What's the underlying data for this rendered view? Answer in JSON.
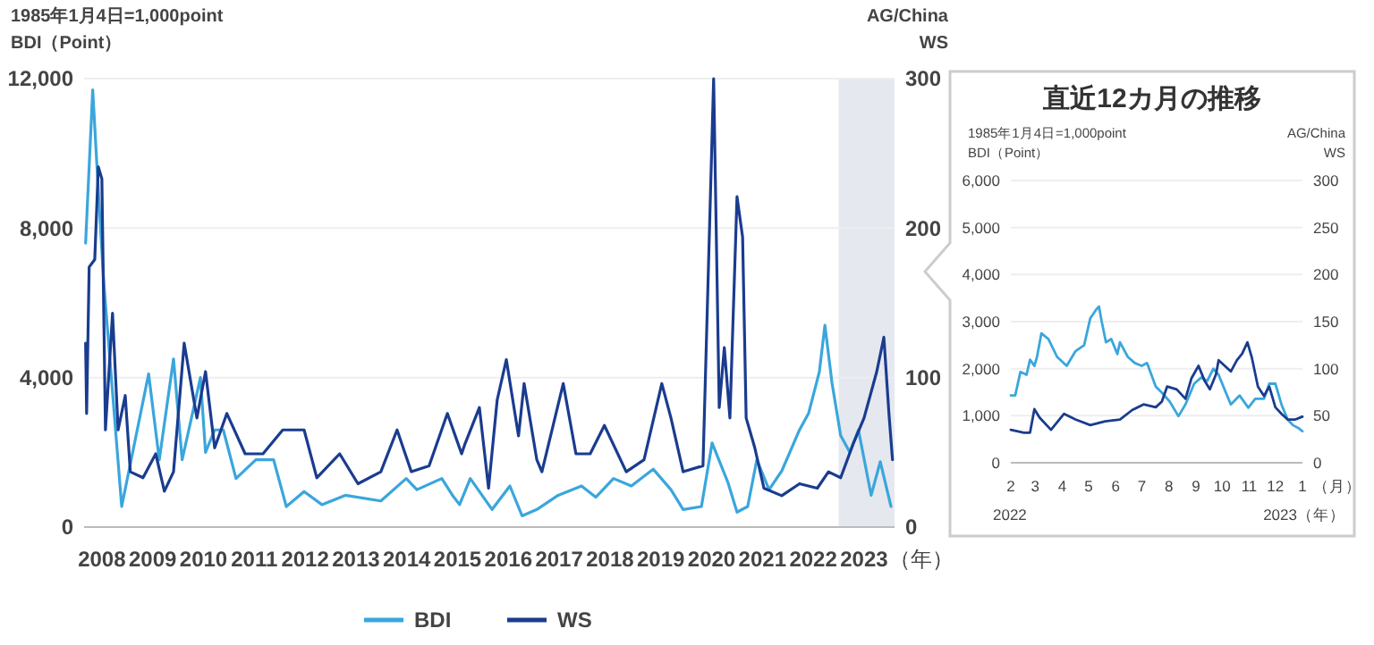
{
  "chart_data": [
    {
      "type": "line",
      "ylabel": "1985年1月4日=1,000point\nBDI（Point）",
      "y2label": "AG/China\nWS",
      "xlabel": "（年）",
      "xlim": [
        2007.65,
        2023.6
      ],
      "xticks": [
        2008,
        2009,
        2010,
        2011,
        2012,
        2013,
        2014,
        2015,
        2016,
        2017,
        2018,
        2019,
        2020,
        2021,
        2022,
        2023
      ],
      "ylim": [
        0,
        12000
      ],
      "yticks": [
        {
          "value": 0,
          "label": "0"
        },
        {
          "value": 4000,
          "label": "4,000"
        },
        {
          "value": 8000,
          "label": "8,000"
        },
        {
          "value": 12000,
          "label": "12,000"
        }
      ],
      "y2lim": [
        0,
        300
      ],
      "y2ticks": [
        0,
        100,
        200,
        300
      ],
      "grid": "y",
      "legend": "bottom",
      "bands": [
        {
          "axis": "x",
          "from": 2022.5,
          "to": 2023.6,
          "color": "#e6e8ef"
        }
      ],
      "series": [
        {
          "name": "BDI",
          "color": "#3aa6dc",
          "x": [
            2007.68,
            2007.82,
            2007.93,
            2008.04,
            2008.39,
            2008.92,
            2009.13,
            2009.41,
            2009.58,
            2009.94,
            2010.04,
            2010.22,
            2010.39,
            2010.64,
            2011.03,
            2011.38,
            2011.63,
            2011.98,
            2012.33,
            2012.79,
            2013.49,
            2013.99,
            2014.2,
            2014.69,
            2014.9,
            2015.04,
            2015.25,
            2015.68,
            2016.03,
            2016.27,
            2016.56,
            2016.98,
            2017.44,
            2017.72,
            2018.07,
            2018.42,
            2018.85,
            2019.2,
            2019.44,
            2019.8,
            2020.01,
            2020.32,
            2020.5,
            2020.71,
            2020.89,
            2021.13,
            2021.38,
            2021.73,
            2021.91,
            2022.12,
            2022.23,
            2022.37,
            2022.54,
            2022.72,
            2022.89,
            2023.14,
            2023.32,
            2023.53
          ],
          "values": [
            7600,
            11700,
            9000,
            6500,
            550,
            4100,
            1800,
            4500,
            1800,
            4000,
            2000,
            2600,
            2600,
            1300,
            1800,
            1800,
            550,
            950,
            600,
            850,
            700,
            1300,
            1000,
            1300,
            850,
            600,
            1300,
            470,
            1100,
            300,
            470,
            850,
            1100,
            800,
            1300,
            1100,
            1550,
            1000,
            470,
            550,
            2250,
            1200,
            400,
            550,
            1800,
            1000,
            1500,
            2600,
            3050,
            4150,
            5400,
            3850,
            2450,
            2000,
            2600,
            850,
            1750,
            550
          ]
        },
        {
          "name": "WS",
          "color": "#1a3c8f",
          "axis": "y2",
          "x": [
            2007.68,
            2007.7,
            2007.75,
            2007.86,
            2007.93,
            2008.0,
            2008.07,
            2008.21,
            2008.32,
            2008.46,
            2008.56,
            2008.81,
            2009.06,
            2009.23,
            2009.41,
            2009.62,
            2009.87,
            2010.04,
            2010.22,
            2010.46,
            2010.82,
            2011.17,
            2011.56,
            2011.98,
            2012.23,
            2012.68,
            2013.04,
            2013.49,
            2013.81,
            2014.09,
            2014.44,
            2014.8,
            2015.08,
            2015.15,
            2015.43,
            2015.61,
            2015.78,
            2015.96,
            2016.2,
            2016.31,
            2016.56,
            2016.66,
            2017.08,
            2017.33,
            2017.61,
            2017.89,
            2018.32,
            2018.67,
            2019.02,
            2019.2,
            2019.44,
            2019.83,
            2020.04,
            2020.15,
            2020.25,
            2020.36,
            2020.5,
            2020.61,
            2020.68,
            2020.85,
            2021.03,
            2021.38,
            2021.73,
            2022.08,
            2022.3,
            2022.54,
            2022.79,
            2023.0,
            2023.25,
            2023.39,
            2023.49,
            2023.56
          ],
          "values": [
            123,
            76,
            174,
            179,
            241,
            233,
            65,
            143,
            65,
            88,
            37,
            33,
            49,
            24,
            37,
            123,
            73,
            104,
            53,
            76,
            49,
            49,
            65,
            65,
            33,
            49,
            29,
            37,
            65,
            37,
            41,
            76,
            49,
            56,
            80,
            26,
            85,
            112,
            61,
            96,
            45,
            37,
            96,
            49,
            49,
            68,
            37,
            45,
            96,
            73,
            37,
            41,
            300,
            80,
            120,
            73,
            221,
            194,
            73,
            53,
            26,
            21,
            29,
            26,
            37,
            33,
            56,
            73,
            104,
            127,
            76,
            45
          ]
        }
      ]
    },
    {
      "type": "line",
      "title": "直近12カ月の推移",
      "ylabel": "1985年1月4日=1,000point\nBDI（Point）",
      "y2label": "AG/China\nWS",
      "xlabel": "（月）",
      "xlim": [
        "2022-02-01",
        "2023-01-01"
      ],
      "xticks": [
        {
          "value": "2022-02",
          "label": "2"
        },
        {
          "value": "2022-03",
          "label": "3"
        },
        {
          "value": "2022-04",
          "label": "4"
        },
        {
          "value": "2022-05",
          "label": "5"
        },
        {
          "value": "2022-06",
          "label": "6"
        },
        {
          "value": "2022-07",
          "label": "7"
        },
        {
          "value": "2022-08",
          "label": "8"
        },
        {
          "value": "2022-09",
          "label": "9"
        },
        {
          "value": "2022-10",
          "label": "10"
        },
        {
          "value": "2022-11",
          "label": "11"
        },
        {
          "value": "2022-12",
          "label": "12"
        },
        {
          "value": "2023-01",
          "label": "1"
        }
      ],
      "ylim": [
        0,
        6000
      ],
      "yticks": [
        {
          "value": 0,
          "label": "0"
        },
        {
          "value": 1000,
          "label": "1,000"
        },
        {
          "value": 2000,
          "label": "2,000"
        },
        {
          "value": 3000,
          "label": "3,000"
        },
        {
          "value": 4000,
          "label": "4,000"
        },
        {
          "value": 5000,
          "label": "5,000"
        },
        {
          "value": 6000,
          "label": "6,000"
        }
      ],
      "y2lim": [
        0,
        300
      ],
      "y2ticks": [
        0,
        50,
        100,
        150,
        200,
        250,
        300
      ],
      "grid": "y",
      "annotations": [
        "2022",
        "2023（年）"
      ],
      "series": [
        {
          "color": "#3aa6dc",
          "x": [
            "2022-02-01",
            "2022-02-06",
            "2022-02-12",
            "2022-02-19",
            "2022-02-23",
            "2022-02-28",
            "2022-03-03",
            "2022-03-08",
            "2022-03-16",
            "2022-03-26",
            "2022-04-06",
            "2022-04-16",
            "2022-04-26",
            "2022-05-03",
            "2022-05-10",
            "2022-05-13",
            "2022-05-16",
            "2022-05-21",
            "2022-05-27",
            "2022-06-03",
            "2022-06-06",
            "2022-06-15",
            "2022-06-23",
            "2022-07-01",
            "2022-07-07",
            "2022-07-17",
            "2022-07-24",
            "2022-08-02",
            "2022-08-12",
            "2022-08-20",
            "2022-08-30",
            "2022-09-07",
            "2022-09-14",
            "2022-09-21",
            "2022-09-27",
            "2022-10-04",
            "2022-10-11",
            "2022-10-21",
            "2022-10-31",
            "2022-11-08",
            "2022-11-18",
            "2022-11-24",
            "2022-12-01",
            "2022-12-08",
            "2022-12-15",
            "2022-12-21",
            "2022-12-28",
            "2023-01-01"
          ],
          "values": [
            1430,
            1430,
            1930,
            1870,
            2190,
            2060,
            2250,
            2750,
            2630,
            2250,
            2060,
            2370,
            2500,
            3070,
            3260,
            3320,
            3010,
            2560,
            2630,
            2310,
            2560,
            2250,
            2120,
            2060,
            2120,
            1620,
            1490,
            1300,
            990,
            1240,
            1680,
            1810,
            1740,
            2000,
            1870,
            1550,
            1240,
            1430,
            1170,
            1360,
            1360,
            1680,
            1680,
            1240,
            920,
            800,
            730,
            670
          ]
        },
        {
          "color": "#1a3c8f",
          "axis": "y2",
          "x": [
            "2022-02-01",
            "2022-02-16",
            "2022-02-23",
            "2022-02-28",
            "2022-03-06",
            "2022-03-19",
            "2022-04-03",
            "2022-04-16",
            "2022-05-03",
            "2022-05-20",
            "2022-06-06",
            "2022-06-20",
            "2022-07-03",
            "2022-07-17",
            "2022-07-24",
            "2022-07-30",
            "2022-08-10",
            "2022-08-20",
            "2022-08-27",
            "2022-09-04",
            "2022-09-11",
            "2022-09-17",
            "2022-09-24",
            "2022-09-27",
            "2022-10-04",
            "2022-10-11",
            "2022-10-18",
            "2022-10-24",
            "2022-10-30",
            "2022-11-04",
            "2022-11-11",
            "2022-11-18",
            "2022-11-24",
            "2022-12-01",
            "2022-12-08",
            "2022-12-15",
            "2022-12-24",
            "2023-01-01"
          ],
          "values": [
            35,
            32,
            32,
            57,
            48,
            35,
            52,
            46,
            40,
            44,
            46,
            56,
            62,
            59,
            65,
            81,
            78,
            68,
            90,
            103,
            87,
            78,
            94,
            109,
            103,
            97,
            109,
            116,
            128,
            112,
            81,
            71,
            81,
            59,
            52,
            46,
            46,
            49
          ]
        }
      ]
    }
  ]
}
